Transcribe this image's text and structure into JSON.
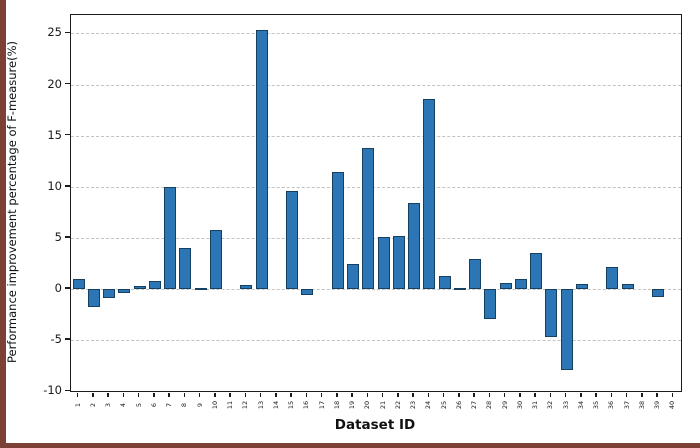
{
  "chart_data": {
    "type": "bar",
    "title": "",
    "xlabel": "Dataset ID",
    "ylabel": "Performance improvement percentage of F-measure(%)",
    "ylim": [
      -10,
      25
    ],
    "yticks": [
      -10,
      -5,
      0,
      5,
      10,
      15,
      20,
      25
    ],
    "grid": "horizontal-dashed",
    "legend": "none",
    "categories": [
      "1",
      "2",
      "3",
      "4",
      "5",
      "6",
      "7",
      "8",
      "9",
      "10",
      "11",
      "12",
      "13",
      "14",
      "15",
      "16",
      "17",
      "18",
      "19",
      "20",
      "21",
      "22",
      "23",
      "24",
      "25",
      "26",
      "27",
      "28",
      "29",
      "30",
      "31",
      "32",
      "33",
      "34",
      "35",
      "36",
      "37",
      "38",
      "39",
      "40"
    ],
    "values": [
      1.0,
      -1.8,
      -0.9,
      -0.4,
      0.3,
      0.8,
      10.0,
      4.0,
      0.1,
      5.8,
      0.0,
      0.4,
      25.3,
      0.0,
      9.6,
      -0.6,
      0.0,
      11.4,
      2.4,
      13.8,
      5.1,
      5.2,
      8.4,
      18.6,
      1.3,
      0.1,
      2.9,
      -3.0,
      0.6,
      1.0,
      3.5,
      -4.7,
      -8.0,
      0.5,
      0.0,
      2.1,
      0.5,
      0.0,
      -0.8,
      0.0
    ]
  },
  "colors": {
    "bar_fill": "#2d76b5",
    "bar_edge": "#16405f",
    "grid_line": "#c2c2c2",
    "axis": "#1c1c1c",
    "edge_strip": "#7c4036"
  }
}
